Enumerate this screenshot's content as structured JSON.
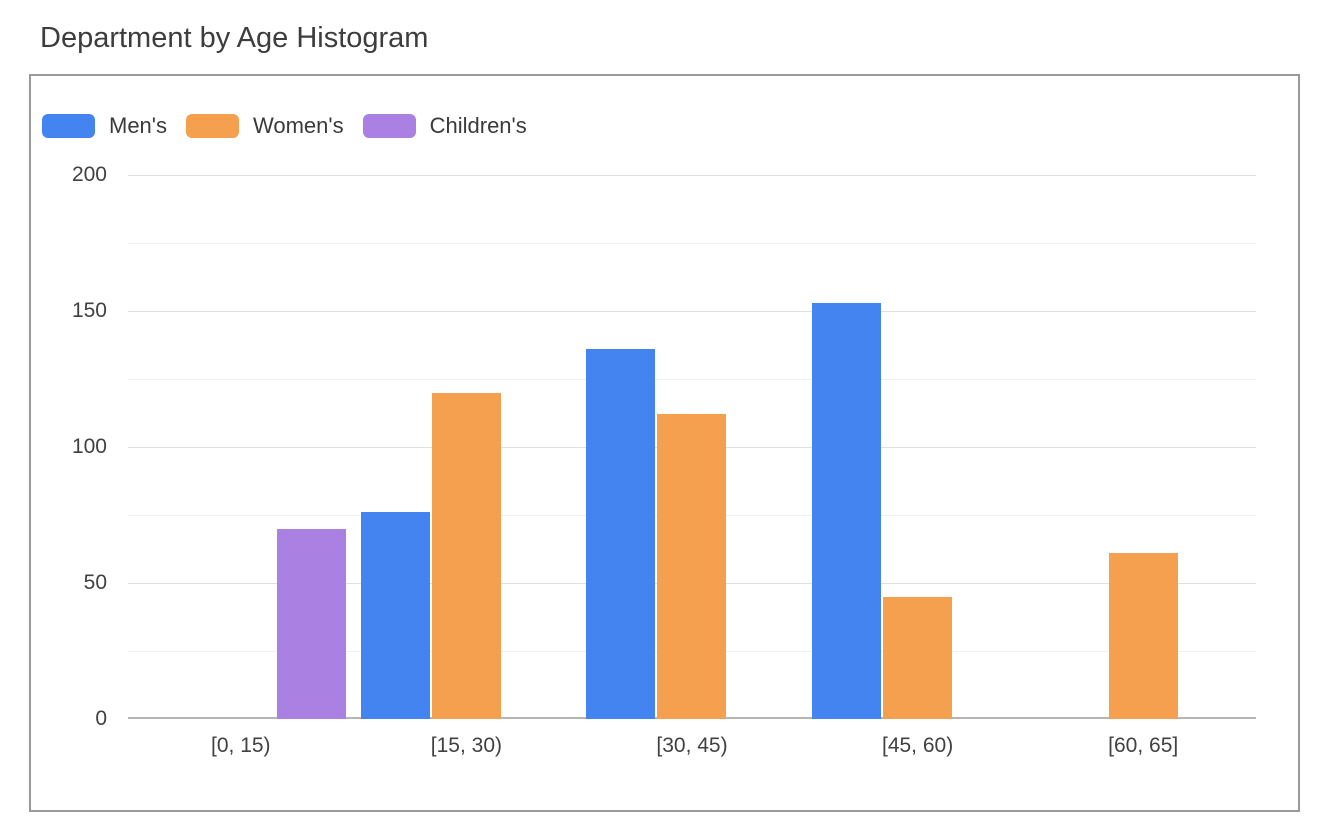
{
  "page": {
    "title": "Department by Age Histogram"
  },
  "legend": {
    "items": [
      {
        "label": "Men's",
        "color": "#4384F1"
      },
      {
        "label": "Women's",
        "color": "#F5A04F"
      },
      {
        "label": "Children's",
        "color": "#AB80E3"
      }
    ]
  },
  "chart_data": {
    "type": "bar",
    "subtype": "grouped-histogram",
    "title": "Department by Age Histogram",
    "categories": [
      "[0, 15)",
      "[15, 30)",
      "[30, 45)",
      "[45, 60)",
      "[60, 65]"
    ],
    "series": [
      {
        "name": "Men's",
        "color": "#4384F1",
        "values": [
          null,
          76,
          136,
          153,
          null
        ]
      },
      {
        "name": "Women's",
        "color": "#F5A04F",
        "values": [
          null,
          120,
          112,
          45,
          61
        ]
      },
      {
        "name": "Children's",
        "color": "#AB80E3",
        "values": [
          70,
          null,
          null,
          null,
          null
        ]
      }
    ],
    "xlabel": "",
    "ylabel": "",
    "ylim": [
      0,
      200
    ],
    "yticks": [
      0,
      50,
      100,
      150,
      200
    ],
    "minor_gridline_step": 25,
    "grid": true,
    "legend_position": "top-left"
  }
}
